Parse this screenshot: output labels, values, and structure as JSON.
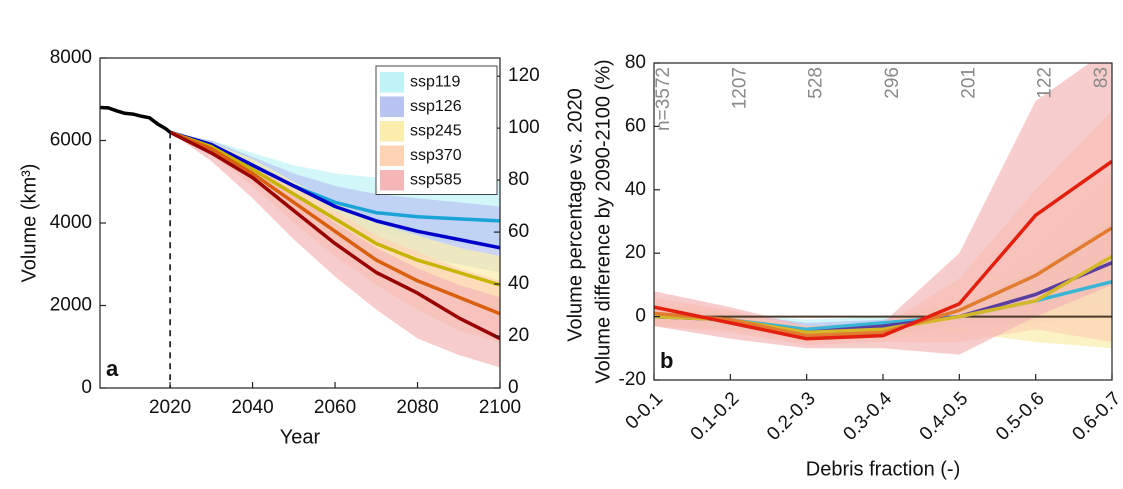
{
  "chart_data": [
    {
      "type": "line",
      "panel_label": "a",
      "xlabel": "Year",
      "ylabel": "Volume (km³)",
      "y2label": "Volume percentage vs. 2020",
      "xlim": [
        2003,
        2100
      ],
      "xticks": [
        2020,
        2040,
        2060,
        2080,
        2100
      ],
      "ylim": [
        0,
        8000
      ],
      "yticks": [
        0,
        2000,
        4000,
        6000,
        8000
      ],
      "y2lim": [
        0,
        127
      ],
      "y2ticks": [
        0,
        20,
        40,
        60,
        80,
        100,
        120
      ],
      "vline": 2020,
      "legend": "upper right",
      "history": {
        "color": "#000000",
        "x": [
          2003,
          2005,
          2007,
          2009,
          2011,
          2013,
          2015,
          2017,
          2019,
          2020
        ],
        "values": [
          6800,
          6790,
          6720,
          6660,
          6640,
          6590,
          6550,
          6400,
          6280,
          6200
        ]
      },
      "x": [
        2020,
        2030,
        2040,
        2050,
        2060,
        2070,
        2080,
        2090,
        2100
      ],
      "series": [
        {
          "name": "ssp119",
          "color": "#1aa3d6",
          "band_color": "#bff3f7",
          "values": [
            6200,
            5900,
            5400,
            4900,
            4500,
            4250,
            4150,
            4100,
            4050
          ],
          "lower": [
            6200,
            5800,
            5200,
            4600,
            4100,
            3800,
            3600,
            3500,
            3400
          ],
          "upper": [
            6200,
            6000,
            5700,
            5400,
            5200,
            5100,
            5000,
            5000,
            5000
          ]
        },
        {
          "name": "ssp126",
          "color": "#0000c8",
          "band_color": "#b8c3f2",
          "values": [
            6200,
            5900,
            5400,
            4900,
            4400,
            4050,
            3800,
            3600,
            3400
          ],
          "lower": [
            6200,
            5750,
            5150,
            4500,
            3900,
            3500,
            3200,
            3000,
            2800
          ],
          "upper": [
            6200,
            6000,
            5600,
            5200,
            4900,
            4700,
            4600,
            4500,
            4400
          ]
        },
        {
          "name": "ssp245",
          "color": "#c8b400",
          "band_color": "#fbeeac",
          "values": [
            6200,
            5850,
            5300,
            4700,
            4100,
            3500,
            3100,
            2800,
            2500
          ],
          "lower": [
            6200,
            5700,
            5000,
            4200,
            3500,
            2900,
            2400,
            2100,
            1800
          ],
          "upper": [
            6200,
            5950,
            5550,
            5000,
            4500,
            4000,
            3700,
            3400,
            3200
          ]
        },
        {
          "name": "ssp370",
          "color": "#d95f0e",
          "band_color": "#fdd3b4",
          "values": [
            6200,
            5800,
            5200,
            4500,
            3800,
            3100,
            2600,
            2200,
            1800
          ],
          "lower": [
            6200,
            5650,
            4900,
            4000,
            3200,
            2500,
            1900,
            1400,
            1100
          ],
          "upper": [
            6200,
            5900,
            5450,
            4900,
            4300,
            3700,
            3300,
            2900,
            2600
          ]
        },
        {
          "name": "ssp585",
          "color": "#990000",
          "band_color": "#f4b6b6",
          "values": [
            6200,
            5700,
            5100,
            4300,
            3500,
            2800,
            2300,
            1700,
            1200
          ],
          "lower": [
            6200,
            5500,
            4600,
            3600,
            2700,
            1900,
            1200,
            800,
            500
          ],
          "upper": [
            6200,
            5850,
            5400,
            4750,
            4000,
            3400,
            2900,
            2500,
            2200
          ]
        }
      ]
    },
    {
      "type": "line",
      "panel_label": "b",
      "xlabel": "Debris fraction (-)",
      "ylabel": "Volume difference by 2090-2100  (%)",
      "ylim": [
        -20,
        80
      ],
      "yticks": [
        -20,
        0,
        20,
        40,
        60,
        80
      ],
      "hline": 0,
      "categories": [
        "0-0.1",
        "0.1-0.2",
        "0.2-0.3",
        "0.3-0.4",
        "0.4-0.5",
        "0.5-0.6",
        "0.6-0.7"
      ],
      "annotations": [
        "n=3572",
        "1207",
        "528",
        "296",
        "201",
        "122",
        "83"
      ],
      "series": [
        {
          "color": "#39b5d6",
          "band_color": "#bff3f7",
          "values": [
            0,
            -1,
            -4,
            -2,
            0,
            5,
            11
          ],
          "lower": [
            -2,
            -3,
            -6,
            -4,
            -2,
            0,
            5
          ],
          "upper": [
            2,
            1,
            -1,
            0,
            3,
            10,
            18
          ]
        },
        {
          "color": "#5a3fa0",
          "band_color": "#b8c3f2",
          "values": [
            0,
            -1,
            -5,
            -3,
            0,
            7,
            17
          ],
          "lower": [
            -3,
            -4,
            -7,
            -6,
            -3,
            -2,
            0
          ],
          "upper": [
            3,
            1,
            -2,
            -1,
            4,
            15,
            30
          ]
        },
        {
          "color": "#d4b82a",
          "band_color": "#fbeeac",
          "values": [
            0,
            -1,
            -5,
            -4,
            0,
            5,
            19
          ],
          "lower": [
            -3,
            -4,
            -8,
            -7,
            -5,
            -8,
            -10
          ],
          "upper": [
            4,
            1,
            -3,
            -2,
            6,
            20,
            45
          ]
        },
        {
          "color": "#e07b30",
          "band_color": "#fdd3b4",
          "values": [
            1,
            -1,
            -6,
            -5,
            2,
            13,
            28
          ],
          "lower": [
            -3,
            -5,
            -9,
            -8,
            -8,
            -4,
            -8
          ],
          "upper": [
            6,
            2,
            -4,
            -3,
            12,
            40,
            65
          ]
        },
        {
          "color": "#e3200f",
          "band_color": "#f4b6b6",
          "values": [
            3,
            -2,
            -7,
            -6,
            4,
            32,
            49
          ],
          "lower": [
            -3,
            -7,
            -10,
            -10,
            -12,
            0,
            10
          ],
          "upper": [
            8,
            3,
            -3,
            -2,
            20,
            68,
            85
          ]
        }
      ]
    }
  ]
}
